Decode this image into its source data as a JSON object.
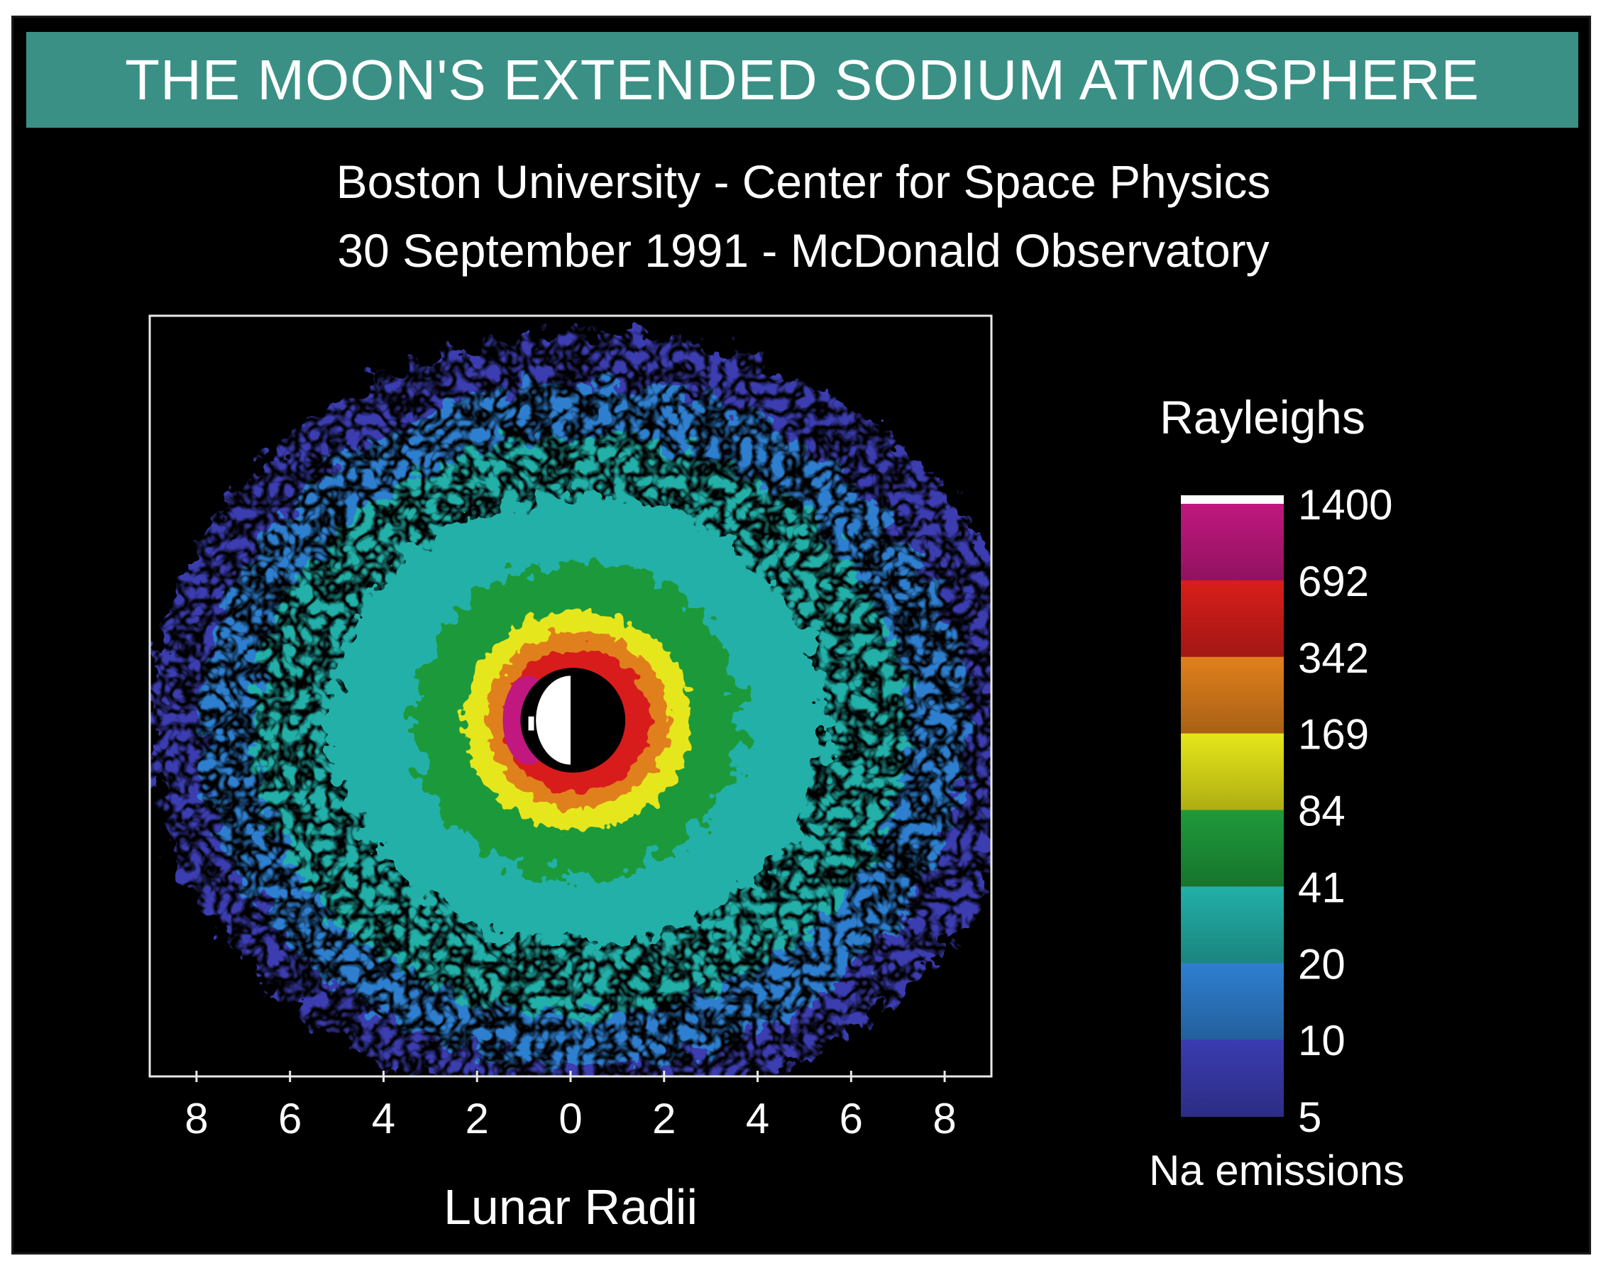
{
  "chart_data": {
    "type": "heatmap",
    "title": "THE MOON'S EXTENDED SODIUM ATMOSPHERE",
    "subtitle_lines": [
      "Boston University - Center for Space Physics",
      "30 September 1991 - McDonald Observatory"
    ],
    "xlabel": "Lunar Radii",
    "x_ticks": [
      "8",
      "6",
      "4",
      "2",
      "0",
      "2",
      "4",
      "6",
      "8"
    ],
    "x_tick_positions": [
      -8,
      -6,
      -4,
      -2,
      0,
      2,
      4,
      6,
      8
    ],
    "xlim": [
      -9,
      9
    ],
    "colorbar": {
      "title": "Rayleighs",
      "label": "Na emissions",
      "levels": [
        "1400",
        "692",
        "342",
        "169",
        "84",
        "41",
        "20",
        "10",
        "5"
      ],
      "colors": [
        "#ffffff",
        "#c0187f",
        "#d81e1a",
        "#e0801c",
        "#e6e61a",
        "#1e9a3a",
        "#22b0a8",
        "#2e7fd0",
        "#3a3cb0"
      ]
    },
    "contour_levels_rayleighs": [
      10,
      20,
      41,
      84,
      169,
      342,
      692,
      1400
    ],
    "moon": {
      "center_x": 0,
      "center_y": 0,
      "radius_lunar_radii": 1
    }
  }
}
